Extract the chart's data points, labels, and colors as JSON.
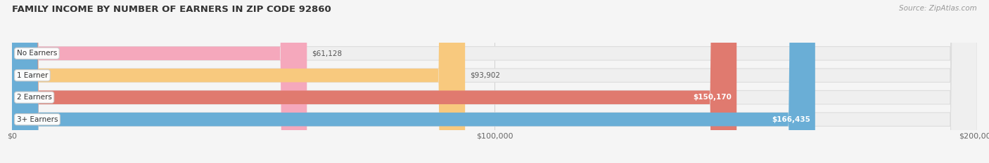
{
  "title": "FAMILY INCOME BY NUMBER OF EARNERS IN ZIP CODE 92860",
  "source": "Source: ZipAtlas.com",
  "categories": [
    "No Earners",
    "1 Earner",
    "2 Earners",
    "3+ Earners"
  ],
  "values": [
    61128,
    93902,
    150170,
    166435
  ],
  "bar_colors": [
    "#f5a8bc",
    "#f8c97e",
    "#e07a6f",
    "#6aaed6"
  ],
  "bar_bg_colors": [
    "#f0f0f0",
    "#f0f0f0",
    "#f0f0f0",
    "#f0f0f0"
  ],
  "value_inside": [
    false,
    false,
    true,
    true
  ],
  "xlim": [
    0,
    200000
  ],
  "x_ticks": [
    0,
    100000,
    200000
  ],
  "x_tick_labels": [
    "$0",
    "$100,000",
    "$200,000"
  ],
  "figsize": [
    14.06,
    2.33
  ],
  "dpi": 100,
  "bg_color": "#f5f5f5",
  "title_fontsize": 9.5,
  "label_fontsize": 7.5,
  "value_fontsize": 7.5,
  "tick_fontsize": 8,
  "source_fontsize": 7.5
}
